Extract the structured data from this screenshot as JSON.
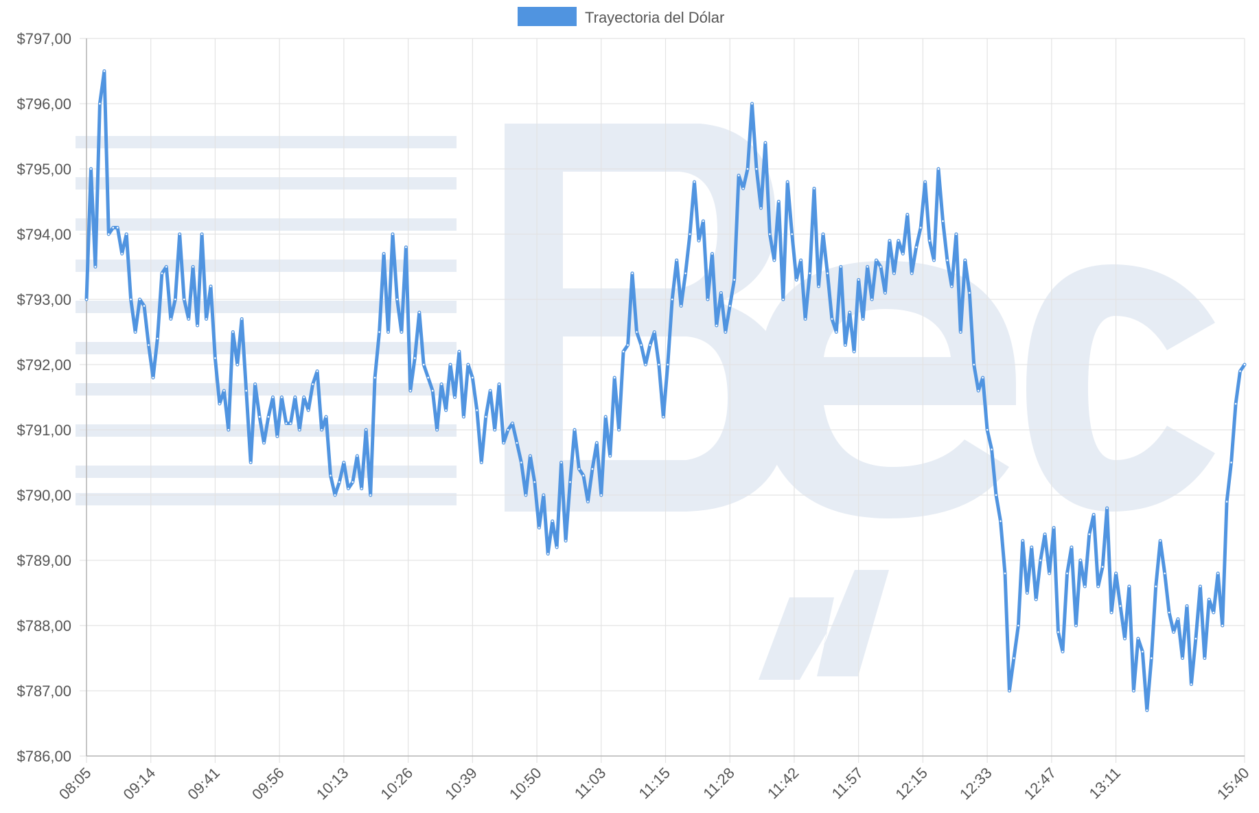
{
  "chart_data": {
    "type": "line",
    "legend": {
      "label": "Trayectoria del Dólar",
      "position": "top-center"
    },
    "colors": {
      "line": "#5094e0",
      "grid": "#e3e3e3",
      "watermark": "#e6ecf4"
    },
    "grid": true,
    "ylim": [
      786,
      797
    ],
    "y_ticks": [
      "$786,00",
      "$787,00",
      "$788,00",
      "$789,00",
      "$790,00",
      "$791,00",
      "$792,00",
      "$793,00",
      "$794,00",
      "$795,00",
      "$796,00",
      "$797,00"
    ],
    "x_ticks": [
      "08:05",
      "09:14",
      "09:41",
      "09:56",
      "10:13",
      "10:26",
      "10:39",
      "10:50",
      "11:03",
      "11:15",
      "11:28",
      "11:42",
      "11:57",
      "12:15",
      "12:33",
      "12:47",
      "13:11",
      "15:40"
    ],
    "series": [
      {
        "name": "Trayectoria del Dólar",
        "values": [
          793.0,
          795.0,
          793.5,
          796.0,
          796.5,
          794.0,
          794.1,
          794.1,
          793.7,
          794.0,
          793.0,
          792.5,
          793.0,
          792.9,
          792.3,
          791.8,
          792.4,
          793.4,
          793.5,
          792.7,
          793.0,
          794.0,
          793.0,
          792.7,
          793.5,
          792.6,
          794.0,
          792.7,
          793.2,
          792.1,
          791.4,
          791.6,
          791.0,
          792.5,
          792.0,
          792.7,
          791.6,
          790.5,
          791.7,
          791.2,
          790.8,
          791.2,
          791.5,
          790.9,
          791.5,
          791.1,
          791.1,
          791.5,
          791.0,
          791.5,
          791.3,
          791.7,
          791.9,
          791.0,
          791.2,
          790.3,
          790.0,
          790.2,
          790.5,
          790.1,
          790.2,
          790.6,
          790.1,
          791.0,
          790.0,
          791.8,
          792.5,
          793.7,
          792.5,
          794.0,
          793.0,
          792.5,
          793.8,
          791.6,
          792.1,
          792.8,
          792.0,
          791.8,
          791.6,
          791.0,
          791.7,
          791.3,
          792.0,
          791.5,
          792.2,
          791.2,
          792.0,
          791.8,
          791.3,
          790.5,
          791.2,
          791.6,
          791.0,
          791.7,
          790.8,
          791.0,
          791.1,
          790.8,
          790.5,
          790.0,
          790.6,
          790.2,
          789.5,
          790.0,
          789.1,
          789.6,
          789.2,
          790.5,
          789.3,
          790.2,
          791.0,
          790.4,
          790.3,
          789.9,
          790.4,
          790.8,
          790.0,
          791.2,
          790.6,
          791.8,
          791.0,
          792.2,
          792.3,
          793.4,
          792.5,
          792.3,
          792.0,
          792.3,
          792.5,
          792.0,
          791.2,
          792.0,
          793.0,
          793.6,
          792.9,
          793.4,
          794.0,
          794.8,
          793.9,
          794.2,
          793.0,
          793.7,
          792.6,
          793.1,
          792.5,
          792.9,
          793.3,
          794.9,
          794.7,
          795.0,
          796.0,
          795.0,
          794.4,
          795.4,
          794.0,
          793.6,
          794.5,
          793.0,
          794.8,
          794.0,
          793.3,
          793.6,
          792.7,
          793.4,
          794.7,
          793.2,
          794.0,
          793.4,
          792.7,
          792.5,
          793.5,
          792.3,
          792.8,
          792.2,
          793.3,
          792.7,
          793.5,
          793.0,
          793.6,
          793.5,
          793.1,
          793.9,
          793.4,
          793.9,
          793.7,
          794.3,
          793.4,
          793.8,
          794.1,
          794.8,
          793.9,
          793.6,
          795.0,
          794.2,
          793.6,
          793.2,
          794.0,
          792.5,
          793.6,
          793.1,
          792.0,
          791.6,
          791.8,
          791.0,
          790.7,
          790.0,
          789.6,
          788.8,
          787.0,
          787.5,
          788.0,
          789.3,
          788.5,
          789.2,
          788.4,
          789.0,
          789.4,
          788.8,
          789.5,
          787.9,
          787.6,
          788.8,
          789.2,
          788.0,
          789.0,
          788.6,
          789.4,
          789.7,
          788.6,
          788.9,
          789.8,
          788.2,
          788.8,
          788.3,
          787.8,
          788.6,
          787.0,
          787.8,
          787.6,
          786.7,
          787.5,
          788.6,
          789.3,
          788.8,
          788.2,
          787.9,
          788.1,
          787.5,
          788.3,
          787.1,
          787.8,
          788.6,
          787.5,
          788.4,
          788.2,
          788.8,
          788.0,
          789.9,
          790.5,
          791.4,
          791.9,
          792.0
        ]
      }
    ]
  }
}
